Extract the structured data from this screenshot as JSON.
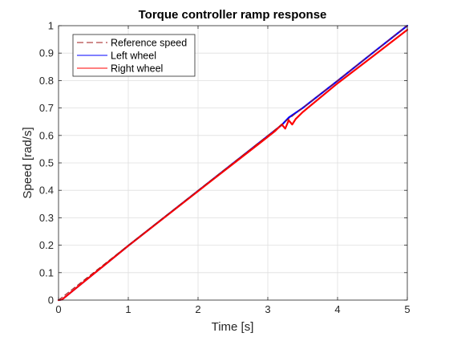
{
  "chart_data": {
    "type": "line",
    "title": "Torque controller ramp response",
    "xlabel": "Time [s]",
    "ylabel": "Speed [rad/s]",
    "xlim": [
      0,
      5
    ],
    "ylim": [
      0,
      1
    ],
    "xticks": [
      0,
      1,
      2,
      3,
      4,
      5
    ],
    "yticks": [
      0,
      0.1,
      0.2,
      0.3,
      0.4,
      0.5,
      0.6,
      0.7,
      0.8,
      0.9,
      1
    ],
    "grid": true,
    "legend_position": "top-left",
    "series": [
      {
        "name": "Reference speed",
        "style": "dashed",
        "color": "#a11a1a",
        "x": [
          0,
          5
        ],
        "y": [
          0,
          1.0
        ]
      },
      {
        "name": "Left wheel",
        "style": "solid",
        "color": "#0000ff",
        "x": [
          0,
          0.05,
          1,
          2,
          3,
          3.2,
          3.3,
          3.5,
          4,
          4.5,
          5
        ],
        "y": [
          0,
          0.002,
          0.198,
          0.398,
          0.598,
          0.638,
          0.665,
          0.7,
          0.799,
          0.9,
          1.0
        ]
      },
      {
        "name": "Right wheel",
        "style": "solid",
        "color": "#ff0000",
        "x": [
          0,
          0.05,
          1,
          2,
          2.9,
          3.0,
          3.1,
          3.2,
          3.25,
          3.3,
          3.35,
          3.4,
          3.5,
          4,
          4.5,
          5
        ],
        "y": [
          0,
          0.002,
          0.198,
          0.397,
          0.575,
          0.595,
          0.615,
          0.64,
          0.625,
          0.655,
          0.64,
          0.66,
          0.685,
          0.79,
          0.887,
          0.985
        ]
      }
    ]
  }
}
